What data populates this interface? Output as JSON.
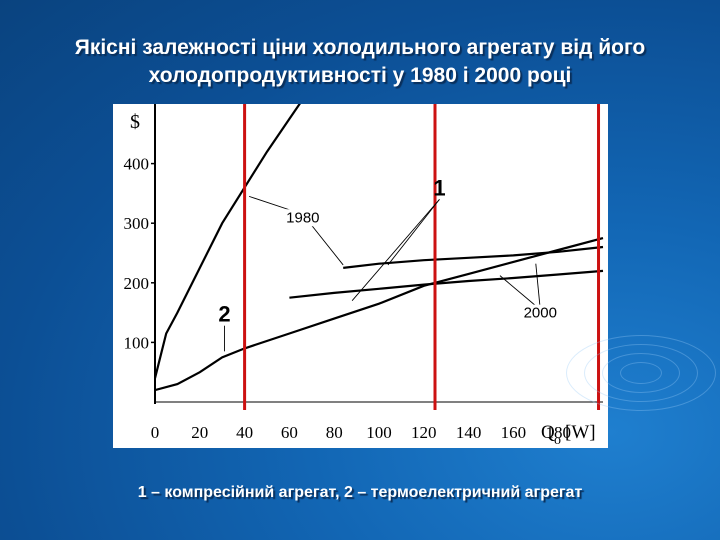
{
  "slide": {
    "title_line1": "Якісні залежності ціни холодильного агрегату від його",
    "title_line2": "холодопродуктивності у 1980  і 2000 році",
    "caption": "1 – компресійний агрегат, 2 – термоелектричний агрегат",
    "background_color": "#1266b4",
    "text_color": "#ffffff"
  },
  "chart_data": {
    "type": "line",
    "xlabel": "Q",
    "xlabel_sub": "o",
    "xlabel_unit": "[W]",
    "ylabel": "$",
    "xlim": [
      0,
      200
    ],
    "ylim": [
      0,
      500
    ],
    "x_ticks": [
      0,
      20,
      40,
      60,
      80,
      100,
      120,
      140,
      160,
      180
    ],
    "y_ticks": [
      100,
      200,
      300,
      400
    ],
    "grid": false,
    "vertical_markers": {
      "x": [
        40,
        125,
        198
      ],
      "color": "#cc1111"
    },
    "series": [
      {
        "x": [
          0,
          5,
          10,
          20,
          30,
          40,
          50,
          60,
          70
        ],
        "y": [
          40,
          115,
          150,
          225,
          300,
          360,
          420,
          475,
          530
        ],
        "color": "#000000"
      },
      {
        "x": [
          84,
          100,
          120,
          140,
          160,
          180,
          200
        ],
        "y": [
          225,
          232,
          238,
          242,
          246,
          252,
          260
        ],
        "color": "#000000"
      },
      {
        "x": [
          0,
          10,
          20,
          30,
          40,
          60,
          80,
          100,
          120,
          140,
          160,
          180,
          200
        ],
        "y": [
          20,
          30,
          50,
          75,
          90,
          115,
          140,
          165,
          195,
          215,
          235,
          255,
          275
        ],
        "color": "#000000"
      },
      {
        "x": [
          60,
          80,
          100,
          120,
          140,
          160,
          180,
          200
        ],
        "y": [
          175,
          183,
          190,
          197,
          203,
          208,
          214,
          220
        ],
        "color": "#000000"
      }
    ],
    "annotations": [
      {
        "text": "1980",
        "x": 66,
        "y": 315,
        "points_to": [
          [
            42,
            345
          ],
          [
            84,
            230
          ]
        ]
      },
      {
        "text": "1",
        "x": 127,
        "y": 340,
        "points_to": [
          [
            104,
            230
          ],
          [
            88,
            170
          ]
        ]
      },
      {
        "text": "2000",
        "x": 172,
        "y": 155,
        "points_to": [
          [
            154,
            212
          ],
          [
            170,
            232
          ]
        ]
      },
      {
        "text": "2",
        "x": 31,
        "y": 128,
        "points_to": [
          [
            31,
            85
          ]
        ]
      }
    ]
  }
}
